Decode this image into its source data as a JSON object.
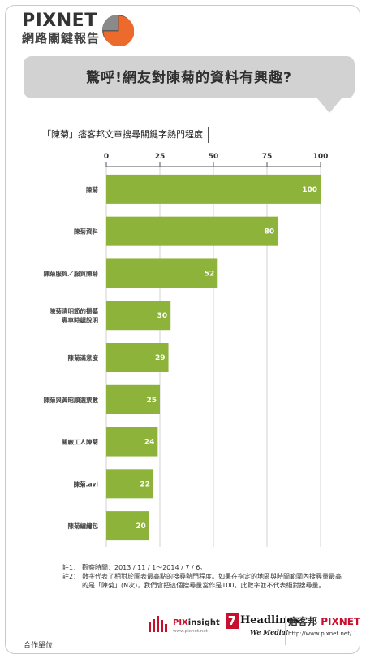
{
  "brand": {
    "name": "PIXNET",
    "subtitle": "網路關鍵報告",
    "colors": {
      "accent": "#ec6a2c",
      "dark": "#555555"
    }
  },
  "headline": "驚呼!網友對陳菊的資料有興趣?",
  "chart_data": {
    "type": "bar",
    "orientation": "horizontal",
    "title": "「陳菊」痞客邦文章搜尋關鍵字熱門程度",
    "categories": [
      [
        "陳菊"
      ],
      [
        "陳菊資料"
      ],
      [
        "陳菊服貿／服貿陳菊"
      ],
      [
        "陳菊清明節的掃墓",
        "專車時總說明"
      ],
      [
        "陳菊滿意度"
      ],
      [
        "陳菊與黃昭順選票數"
      ],
      [
        "關廠工人陳菊"
      ],
      [
        "陳菊.avi"
      ],
      [
        "陳菊繡繡包"
      ]
    ],
    "values": [
      100,
      80,
      52,
      30,
      29,
      25,
      24,
      22,
      20
    ],
    "xlim": [
      0,
      100
    ],
    "xticks": [
      0,
      25,
      50,
      75,
      100
    ],
    "axis_position": "top",
    "grid": true,
    "bar_color": "#8db33a",
    "grid_color": "#d0d0d0"
  },
  "notes": [
    {
      "label": "註1：",
      "text": "觀察時間：2013 / 11 / 1～2014 / 7 / 6。"
    },
    {
      "label": "註2：",
      "text": "數字代表了相對於圖表最高點的搜尋熱門程度。如果在指定的地區與時間範圍內搜尋量最高的是「陳菊」(N次)，我們會把這個搜尋量當作是100。此數字並不代表絕對搜尋量。"
    }
  ],
  "footer": {
    "partner_label": "合作單位",
    "pixinsight": {
      "prefix": "PIX",
      "name": "insight",
      "sub": "www.pixnet.net"
    },
    "headlines": {
      "num": "7",
      "name": "Headlines",
      "slogan": "We Media!"
    },
    "pixnet": {
      "cn": "痞客邦",
      "name": "PIXNET",
      "url": "http://www.pixnet.net/"
    }
  }
}
